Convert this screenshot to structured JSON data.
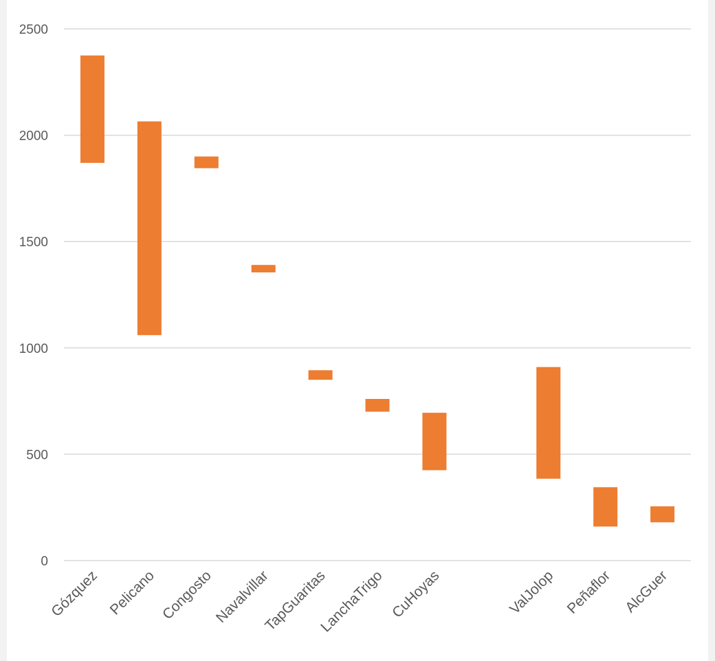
{
  "chart_data": {
    "type": "bar",
    "subtype": "floating-range",
    "title": "",
    "xlabel": "",
    "ylabel": "",
    "ylim": [
      0,
      2500
    ],
    "yticks": [
      0,
      500,
      1000,
      1500,
      2000,
      2500
    ],
    "grid": true,
    "legend": "none",
    "bar_color": "#ed7d31",
    "categories": [
      "Gózquez",
      "Pelicano",
      "Congosto",
      "Navalvillar",
      "TapGuaritas",
      "LanchaTrigo",
      "CuHoyas",
      "",
      "ValJolop",
      "Peñaflor",
      "AlcGuer"
    ],
    "series": [
      {
        "low": [
          1870,
          1060,
          1845,
          1355,
          850,
          700,
          425,
          null,
          385,
          160,
          180
        ],
        "high": [
          2375,
          2065,
          1900,
          1390,
          895,
          760,
          695,
          null,
          910,
          345,
          255
        ]
      }
    ]
  }
}
